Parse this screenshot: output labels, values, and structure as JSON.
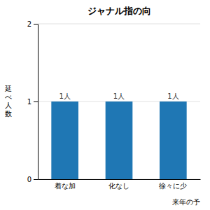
{
  "chart_data": {
    "type": "bar",
    "title": "ジャナル指の向",
    "categories": [
      "着な加",
      "化なし",
      "徐々に少"
    ],
    "values": [
      1,
      1,
      1
    ],
    "data_labels": true,
    "value_labels": [
      "1人",
      "1人",
      "1人"
    ],
    "ylabel": "延べ人数",
    "annotations": [
      "来年の予"
    ],
    "ylim": [
      0,
      2
    ],
    "yticks": [
      0,
      1,
      2
    ],
    "grid": true
  }
}
